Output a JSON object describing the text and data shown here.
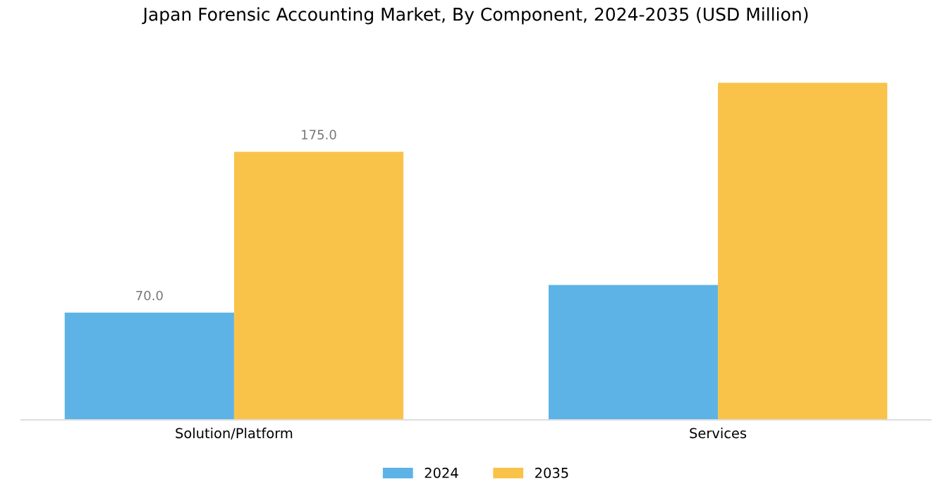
{
  "chart_data": {
    "type": "bar",
    "title": "Japan Forensic Accounting Market, By Component, 2024-2035 (USD Million)",
    "categories": [
      "Solution/Platform",
      "Services"
    ],
    "series": [
      {
        "name": "2024",
        "color": "#5db3e6",
        "values": [
          70.0,
          88
        ],
        "value_labels": [
          "70.0",
          null
        ]
      },
      {
        "name": "2035",
        "color": "#f9c34a",
        "values": [
          175.0,
          220
        ],
        "value_labels": [
          "175.0",
          null
        ]
      }
    ],
    "legend": "bottom",
    "grid": false
  }
}
